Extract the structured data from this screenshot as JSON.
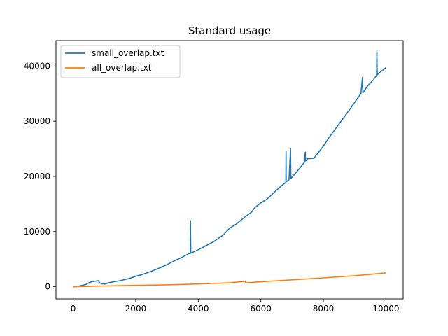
{
  "chart_data": {
    "type": "line",
    "title": "Standard usage",
    "xlabel": "",
    "ylabel": "",
    "xlim": [
      -550,
      10550
    ],
    "ylim": [
      -2200,
      44600
    ],
    "xticks": [
      0,
      2000,
      4000,
      6000,
      8000,
      10000
    ],
    "yticks": [
      0,
      10000,
      20000,
      30000,
      40000
    ],
    "grid": false,
    "legend_position": "top-left",
    "series": [
      {
        "name": "small_overlap.txt",
        "color": "#1f77b4",
        "points": [
          [
            0,
            0
          ],
          [
            200,
            150
          ],
          [
            400,
            400
          ],
          [
            500,
            700
          ],
          [
            600,
            950
          ],
          [
            700,
            1000
          ],
          [
            800,
            1100
          ],
          [
            850,
            700
          ],
          [
            900,
            550
          ],
          [
            1000,
            500
          ],
          [
            1200,
            800
          ],
          [
            1500,
            1100
          ],
          [
            1800,
            1500
          ],
          [
            2000,
            1900
          ],
          [
            2200,
            2200
          ],
          [
            2500,
            2800
          ],
          [
            2800,
            3500
          ],
          [
            3000,
            4000
          ],
          [
            3200,
            4600
          ],
          [
            3500,
            5400
          ],
          [
            3700,
            6000
          ],
          [
            3740,
            6000
          ],
          [
            3750,
            12000
          ],
          [
            3760,
            6100
          ],
          [
            3800,
            6200
          ],
          [
            4000,
            6700
          ],
          [
            4200,
            7300
          ],
          [
            4500,
            8200
          ],
          [
            4800,
            9400
          ],
          [
            5000,
            10600
          ],
          [
            5200,
            11300
          ],
          [
            5500,
            12700
          ],
          [
            5700,
            13500
          ],
          [
            5800,
            14300
          ],
          [
            6000,
            15200
          ],
          [
            6200,
            15900
          ],
          [
            6500,
            17500
          ],
          [
            6700,
            18500
          ],
          [
            6800,
            18900
          ],
          [
            6805,
            24500
          ],
          [
            6810,
            19000
          ],
          [
            6900,
            19400
          ],
          [
            6950,
            25000
          ],
          [
            6960,
            19600
          ],
          [
            7000,
            19900
          ],
          [
            7200,
            21200
          ],
          [
            7400,
            22600
          ],
          [
            7420,
            24400
          ],
          [
            7430,
            22800
          ],
          [
            7500,
            23200
          ],
          [
            7700,
            23300
          ],
          [
            8000,
            25500
          ],
          [
            8200,
            27200
          ],
          [
            8500,
            29500
          ],
          [
            8800,
            31800
          ],
          [
            9000,
            33400
          ],
          [
            9200,
            35000
          ],
          [
            9250,
            37900
          ],
          [
            9260,
            35100
          ],
          [
            9400,
            36300
          ],
          [
            9600,
            37500
          ],
          [
            9700,
            38300
          ],
          [
            9710,
            42600
          ],
          [
            9720,
            38400
          ],
          [
            9800,
            38800
          ],
          [
            10000,
            39700
          ]
        ]
      },
      {
        "name": "all_overlap.txt",
        "color": "#ff7f0e",
        "points": [
          [
            0,
            0
          ],
          [
            1000,
            150
          ],
          [
            2000,
            250
          ],
          [
            3000,
            350
          ],
          [
            4000,
            500
          ],
          [
            5000,
            700
          ],
          [
            5500,
            1000
          ],
          [
            5520,
            700
          ],
          [
            6000,
            900
          ],
          [
            7000,
            1250
          ],
          [
            8000,
            1600
          ],
          [
            9000,
            2000
          ],
          [
            10000,
            2500
          ]
        ]
      }
    ]
  }
}
